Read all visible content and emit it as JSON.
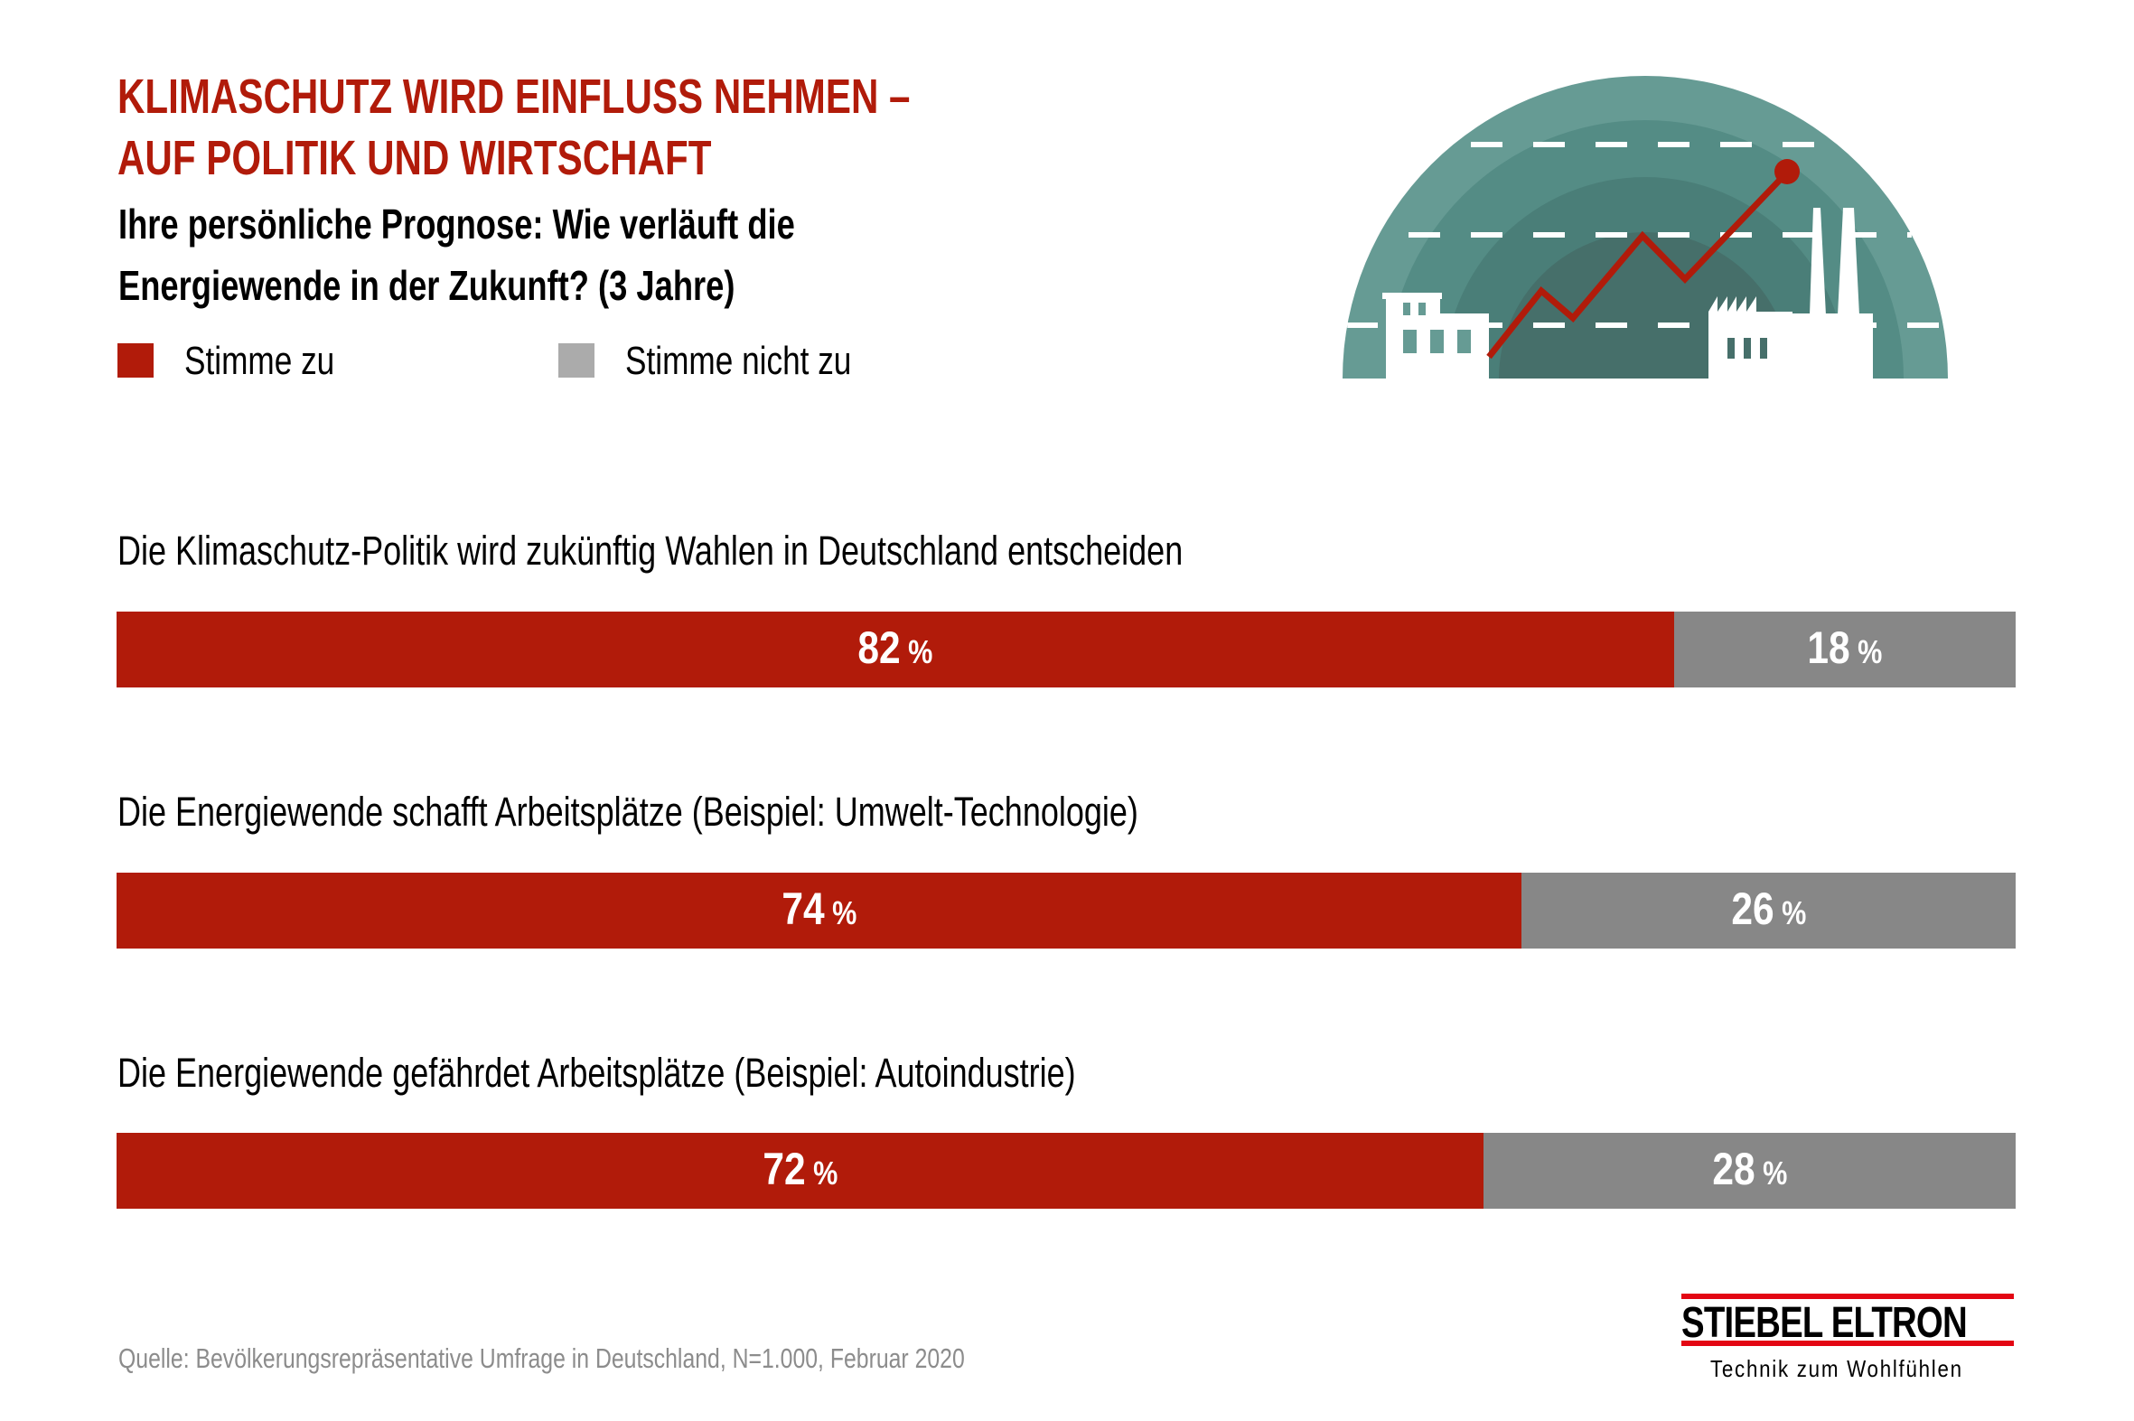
{
  "header": {
    "title_line1": "KLIMASCHUTZ WIRD EINFLUSS NEHMEN –",
    "title_line2": "AUF POLITIK UND WIRTSCHAFT",
    "subtitle_line1": "Ihre persönliche Prognose: Wie verläuft die",
    "subtitle_line2": "Energiewende in der Zukunft? (3 Jahre)"
  },
  "colors": {
    "agree": "#B11B0A",
    "disagree": "#878787",
    "legend_disagree": "#ABABAB",
    "teal_outer": "#669B94",
    "teal_2": "#548C85",
    "teal_3": "#4A7E78",
    "teal_inner": "#466F6A"
  },
  "legend": [
    {
      "label": "Stimme zu",
      "icon": "red-square"
    },
    {
      "label": "Stimme nicht zu",
      "icon": "gray-square"
    }
  ],
  "illustration": {
    "icon": "factory-growth-chart-illustration"
  },
  "chart_data": {
    "type": "bar",
    "orientation": "horizontal-stacked-100",
    "title": "KLIMASCHUTZ WIRD EINFLUSS NEHMEN – AUF POLITIK UND WIRTSCHAFT",
    "subtitle": "Ihre persönliche Prognose: Wie verläuft die Energiewende in der Zukunft? (3 Jahre)",
    "categories": [
      "Die Klimaschutz-Politik wird zukünftig Wahlen in Deutschland entscheiden",
      "Die Energiewende schafft Arbeitsplätze (Beispiel: Umwelt-Technologie)",
      "Die Energiewende gefährdet Arbeitsplätze (Beispiel: Autoindustrie)"
    ],
    "series": [
      {
        "name": "Stimme zu",
        "values": [
          82,
          74,
          72
        ]
      },
      {
        "name": "Stimme nicht zu",
        "values": [
          18,
          26,
          28
        ]
      }
    ],
    "value_suffix": "%",
    "xlim": [
      0,
      100
    ],
    "grid": false,
    "legend_position": "top-left",
    "xlabel": "",
    "ylabel": ""
  },
  "footer": {
    "source": "Quelle: Bevölkerungsrepräsentative Umfrage in Deutschland, N=1.000, Februar 2020",
    "logo_text": "STIEBEL ELTRON",
    "logo_tagline": "Technik zum Wohlfühlen"
  }
}
